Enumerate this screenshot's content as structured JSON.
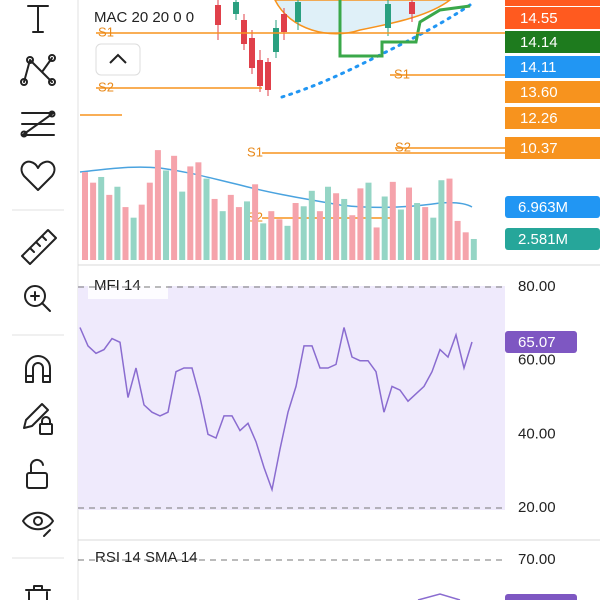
{
  "main": {
    "indicator_label": "MAC 20 20 0 0",
    "level_labels": [
      "S1",
      "S2",
      "S1",
      "S1",
      "S2",
      "S2"
    ],
    "price_labels": [
      {
        "text": "14.55",
        "color": "#ff5a1f"
      },
      {
        "text": "14.14",
        "color": "#1e7b1e"
      },
      {
        "text": "14.11",
        "color": "#2196f3"
      },
      {
        "text": "13.60",
        "color": "#f7931e"
      },
      {
        "text": "12.26",
        "color": "#f7931e"
      },
      {
        "text": "10.37",
        "color": "#f7931e"
      }
    ]
  },
  "volume": {
    "values": [
      10.8,
      9.5,
      10.2,
      8.0,
      9.0,
      6.5,
      5.2,
      6.8,
      9.5,
      13.5,
      11.0,
      12.8,
      8.4,
      11.5,
      12.0,
      10.0,
      7.5,
      6.0,
      8.0,
      6.5,
      7.2,
      9.3,
      4.5,
      6.0,
      5.0,
      4.2,
      7.0,
      6.6,
      8.5,
      6.0,
      9.0,
      8.2,
      7.5,
      5.5,
      8.8,
      9.5,
      4.0,
      7.8,
      9.6,
      6.2,
      8.9,
      7.0,
      6.5,
      5.2,
      9.8,
      10.0,
      4.8,
      3.4,
      2.581
    ],
    "colors": [
      "#f5a3ab",
      "#f5a3ab",
      "#95d5c5",
      "#f5a3ab",
      "#95d5c5",
      "#f5a3ab",
      "#95d5c5",
      "#f5a3ab",
      "#f5a3ab",
      "#f5a3ab",
      "#95d5c5",
      "#f5a3ab",
      "#95d5c5",
      "#f5a3ab",
      "#f5a3ab",
      "#95d5c5",
      "#f5a3ab",
      "#95d5c5",
      "#f5a3ab",
      "#f5a3ab",
      "#95d5c5",
      "#f5a3ab",
      "#95d5c5",
      "#f5a3ab",
      "#f5a3ab",
      "#95d5c5",
      "#f5a3ab",
      "#95d5c5",
      "#95d5c5",
      "#f5a3ab",
      "#95d5c5",
      "#f5a3ab",
      "#95d5c5",
      "#f5a3ab",
      "#f5a3ab",
      "#95d5c5",
      "#f5a3ab",
      "#95d5c5",
      "#f5a3ab",
      "#95d5c5",
      "#f5a3ab",
      "#95d5c5",
      "#f5a3ab",
      "#95d5c5",
      "#95d5c5",
      "#f5a3ab",
      "#f5a3ab",
      "#f5a3ab",
      "#95d5c5"
    ],
    "ma_label": "6.963M",
    "last_label": "2.581M"
  },
  "mfi": {
    "title": "MFI 14",
    "color": "#8a6cd0",
    "values": [
      69,
      64,
      62,
      63,
      66,
      65,
      50,
      58,
      48,
      46,
      45,
      46,
      57,
      58,
      58,
      50,
      40,
      39,
      45,
      45,
      41,
      43,
      38,
      31,
      25,
      36,
      46,
      53,
      64,
      64,
      58,
      58,
      59,
      69,
      61,
      60,
      60,
      57,
      46,
      53,
      52,
      49,
      51,
      53,
      57,
      63,
      61,
      67,
      58,
      65.07
    ],
    "ylim": [
      20,
      80
    ],
    "yticks": [
      {
        "value": 80,
        "label": "80.00"
      },
      {
        "value": 60,
        "label": "60.00"
      },
      {
        "value": 40,
        "label": "40.00"
      },
      {
        "value": 20,
        "label": "20.00"
      }
    ]
  },
  "rsi": {
    "title": "RSI 14 SMA 14",
    "yticks": [
      {
        "value": 70,
        "label": "70.00"
      }
    ]
  }
}
